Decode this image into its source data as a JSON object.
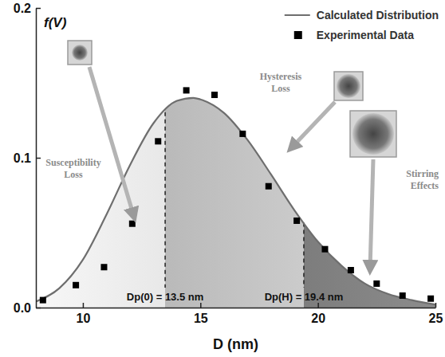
{
  "chart_data": {
    "type": "line",
    "x_label": "D (nm)",
    "y_label": "f(V)",
    "xlim": [
      8,
      25
    ],
    "xticks": [
      10,
      15,
      20,
      25
    ],
    "ylim": [
      0,
      0.2
    ],
    "yticks": [
      {
        "value": 0,
        "label": "0.0"
      },
      0.1,
      0.2
    ],
    "legend": "top-right",
    "series": [
      {
        "name": "Calculated Distribution",
        "type": "line",
        "color": "#6e6e6e",
        "line_style": "solid",
        "x": [
          8,
          9,
          10,
          11,
          12,
          13,
          14,
          14.7,
          15,
          16,
          17,
          18,
          19,
          20,
          21,
          22,
          23,
          24,
          25
        ],
        "values": [
          0.004,
          0.013,
          0.032,
          0.062,
          0.095,
          0.123,
          0.138,
          0.14,
          0.139,
          0.13,
          0.112,
          0.089,
          0.065,
          0.044,
          0.028,
          0.016,
          0.009,
          0.005,
          0.002
        ]
      },
      {
        "name": "Experimental Data",
        "type": "scatter",
        "marker": "square",
        "color": "#000000",
        "x": [
          8.3,
          9.7,
          10.9,
          12.1,
          13.2,
          14.4,
          15.6,
          16.8,
          17.9,
          19.1,
          20.3,
          21.4,
          22.5,
          23.6,
          24.8
        ],
        "values": [
          0.005,
          0.015,
          0.027,
          0.056,
          0.111,
          0.145,
          0.142,
          0.116,
          0.081,
          0.058,
          0.039,
          0.025,
          0.016,
          0.008,
          0.006
        ]
      }
    ],
    "vlines": [
      {
        "value": 13.5,
        "label": "Dp(0) = 13.5 nm"
      },
      {
        "value": 19.4,
        "label": "Dp(H) = 19.4 nm"
      }
    ],
    "annotations": [
      "Susceptibility Loss",
      "Hysteresis Loss",
      "Stirring Effects"
    ]
  }
}
